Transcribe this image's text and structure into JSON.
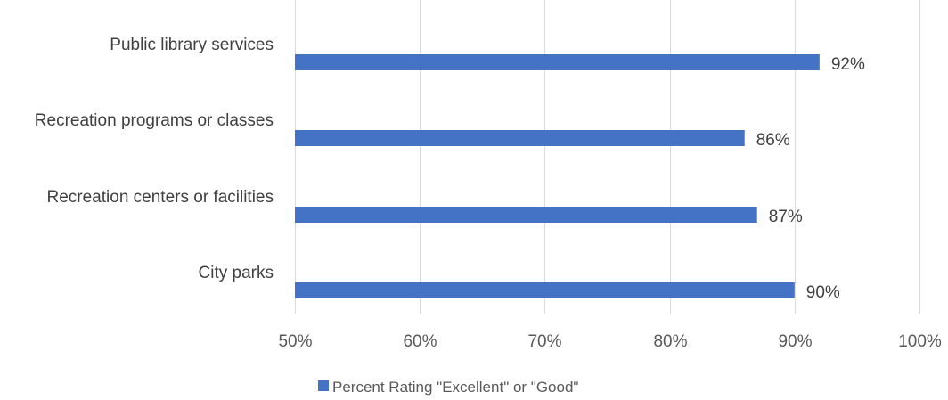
{
  "chart_data": {
    "type": "bar",
    "orientation": "horizontal",
    "categories": [
      "Public library services",
      "Recreation programs or classes",
      "Recreation centers or facilities",
      "City parks"
    ],
    "series": [
      {
        "name": "Percent Rating \"Excellent\" or \"Good\"",
        "values": [
          92,
          86,
          87,
          90
        ],
        "data_labels": [
          "92%",
          "86%",
          "87%",
          "90%"
        ],
        "color": "#4472c4"
      }
    ],
    "xlim": [
      50,
      100
    ],
    "xticks": [
      50,
      60,
      70,
      80,
      90,
      100
    ],
    "xtick_labels": [
      "50%",
      "60%",
      "70%",
      "80%",
      "90%",
      "100%"
    ],
    "grid": true,
    "legend_position": "bottom"
  }
}
